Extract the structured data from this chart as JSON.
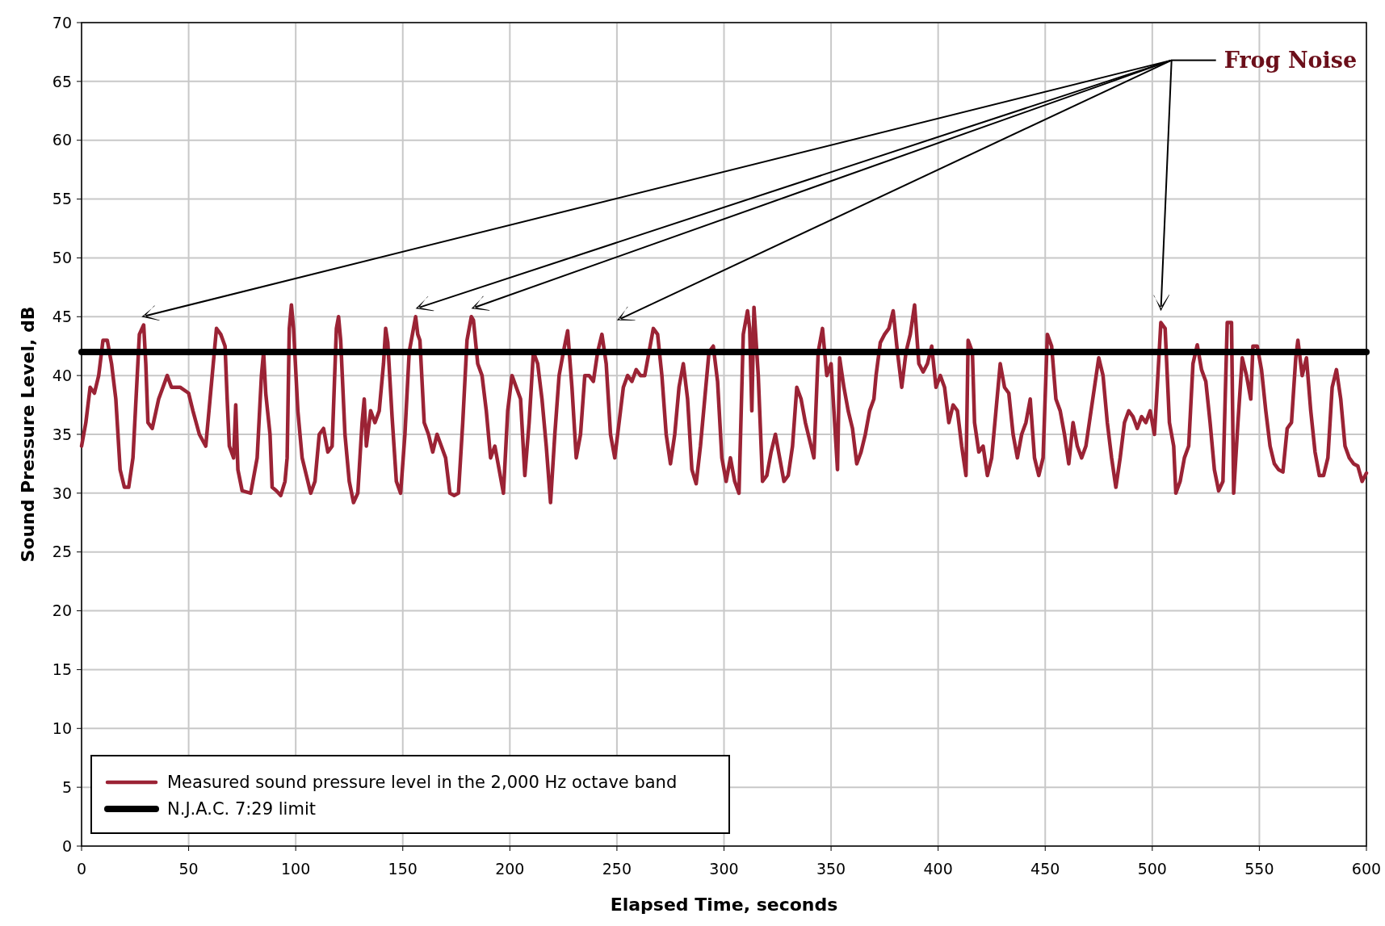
{
  "chart_data": {
    "type": "line",
    "xlabel": "Elapsed Time, seconds",
    "ylabel": "Sound Pressure Level, dB",
    "xlim": [
      0,
      600
    ],
    "xticks": [
      0,
      50,
      100,
      150,
      200,
      250,
      300,
      350,
      400,
      450,
      500,
      550,
      600
    ],
    "ylim": [
      0,
      70
    ],
    "yticks": [
      0,
      5,
      10,
      15,
      20,
      25,
      30,
      35,
      40,
      45,
      50,
      55,
      60,
      65,
      70
    ],
    "grid": true,
    "legend": "bottom left",
    "series": [
      {
        "name": "Measured sound pressure level in the 2,000 Hz octave band",
        "color": "#9b2335",
        "x": [
          0,
          2,
          4,
          6,
          8,
          10,
          12,
          14,
          16,
          18,
          20,
          22,
          24,
          26,
          27,
          29,
          30,
          31,
          33,
          36,
          38,
          40,
          42,
          46,
          50,
          52,
          55,
          58,
          60,
          62,
          63,
          65,
          67,
          68,
          69,
          71,
          72,
          73,
          75,
          79,
          82,
          84,
          85,
          86,
          88,
          89,
          91,
          93,
          95,
          96,
          97,
          98,
          99,
          101,
          103,
          105,
          107,
          109,
          111,
          113,
          115,
          117,
          119,
          120,
          121,
          123,
          125,
          127,
          129,
          131,
          132,
          133,
          135,
          137,
          139,
          141,
          142,
          143,
          145,
          147,
          149,
          151,
          153,
          155,
          156,
          157,
          158,
          160,
          162,
          164,
          166,
          168,
          170,
          172,
          174,
          176,
          178,
          180,
          182,
          183,
          185,
          187,
          189,
          191,
          193,
          195,
          197,
          199,
          201,
          203,
          205,
          207,
          209,
          211,
          213,
          215,
          217,
          219,
          221,
          223,
          225,
          227,
          229,
          231,
          233,
          235,
          237,
          239,
          241,
          243,
          245,
          247,
          249,
          251,
          253,
          255,
          257,
          259,
          261,
          263,
          265,
          267,
          269,
          271,
          273,
          275,
          277,
          279,
          281,
          283,
          285,
          287,
          289,
          291,
          293,
          295,
          297,
          299,
          301,
          303,
          305,
          307,
          309,
          311,
          312,
          313,
          314,
          316,
          318,
          320,
          322,
          324,
          326,
          328,
          330,
          332,
          334,
          336,
          338,
          340,
          342,
          344,
          346,
          348,
          350,
          352,
          353,
          354,
          356,
          358,
          360,
          362,
          364,
          366,
          368,
          370,
          371,
          373,
          375,
          377,
          379,
          381,
          383,
          385,
          387,
          389,
          391,
          393,
          395,
          397,
          399,
          401,
          403,
          405,
          407,
          409,
          411,
          413,
          414,
          416,
          417,
          419,
          421,
          423,
          425,
          427,
          429,
          431,
          433,
          435,
          437,
          439,
          441,
          443,
          445,
          447,
          449,
          451,
          453,
          455,
          457,
          459,
          461,
          463,
          465,
          467,
          469,
          471,
          473,
          475,
          477,
          479,
          481,
          483,
          485,
          487,
          489,
          491,
          493,
          495,
          497,
          499,
          501,
          502,
          504,
          506,
          508,
          510,
          511,
          513,
          515,
          517,
          519,
          521,
          523,
          525,
          527,
          529,
          531,
          533,
          535,
          537,
          538,
          540,
          542,
          544,
          546,
          547,
          549,
          551,
          553,
          555,
          557,
          559,
          561,
          563,
          565,
          567,
          568,
          570,
          572,
          574,
          576,
          578,
          580,
          582,
          584,
          586,
          588,
          590,
          592,
          594,
          596,
          598,
          600
        ],
        "values": [
          34,
          36,
          39,
          38.5,
          40,
          43,
          43,
          41,
          38,
          32,
          30.5,
          30.5,
          33,
          40,
          43.5,
          44.3,
          41,
          36,
          35.5,
          38,
          39,
          40,
          39,
          39,
          38.5,
          37,
          35,
          34,
          38,
          42,
          44,
          43.5,
          42.5,
          38,
          34,
          33,
          37.5,
          32,
          30.2,
          30,
          33,
          40,
          42,
          38.5,
          35,
          30.5,
          30.2,
          29.8,
          31,
          33,
          44,
          46,
          44,
          37,
          33,
          31.5,
          30,
          31,
          35,
          35.5,
          33.5,
          34,
          44,
          45,
          43,
          35,
          31,
          29.2,
          30,
          36,
          38,
          34,
          37,
          36,
          37,
          41,
          44,
          42.8,
          36.5,
          31,
          30,
          35,
          42,
          44,
          45,
          43.5,
          43,
          36,
          35,
          33.5,
          35,
          34,
          33,
          30,
          29.8,
          30,
          36,
          43,
          45,
          44.7,
          41,
          40,
          37,
          33,
          34,
          32,
          30,
          37,
          40,
          39,
          38,
          31.5,
          36,
          42,
          41,
          38,
          34,
          29.2,
          35,
          40,
          42,
          43.8,
          39,
          33,
          35,
          40,
          40,
          39.5,
          42,
          43.5,
          41,
          35,
          33,
          36,
          39,
          40,
          39.5,
          40.5,
          40,
          40,
          42,
          44,
          43.5,
          40,
          35,
          32.5,
          35,
          39,
          41,
          38,
          32,
          30.8,
          34,
          38,
          42,
          42.5,
          39.5,
          33,
          31,
          33,
          31,
          30,
          43.5,
          45.5,
          44,
          37,
          45.8,
          40,
          31,
          31.5,
          33.5,
          35,
          33,
          31,
          31.5,
          34,
          39,
          38,
          36,
          34.5,
          33,
          42,
          44,
          40,
          41,
          35,
          32,
          41.5,
          39,
          37,
          35.5,
          32.5,
          33.5,
          35,
          37,
          38,
          40,
          42.8,
          43.5,
          44,
          45.5,
          42,
          39,
          42,
          43.5,
          46,
          41,
          40.3,
          41,
          42.5,
          39,
          40,
          39,
          36,
          37.5,
          37,
          34,
          31.5,
          43,
          42,
          36,
          33.5,
          34,
          31.5,
          33,
          37,
          41,
          39,
          38.5,
          35,
          33,
          35,
          36,
          38,
          33,
          31.5,
          33,
          43.5,
          42.5,
          38,
          37,
          35,
          32.5,
          36,
          34,
          33,
          34,
          36.5,
          39,
          41.5,
          40,
          36,
          33,
          30.5,
          33,
          36,
          37,
          36.5,
          35.5,
          36.5,
          36,
          37,
          35,
          38,
          44.5,
          44,
          36,
          34,
          30,
          31,
          33,
          34,
          41,
          42.6,
          40.5,
          39.5,
          36,
          32,
          30.2,
          31,
          44.5,
          44.5,
          30,
          36,
          41.5,
          40,
          38,
          42.5,
          42.5,
          40.5,
          37,
          34,
          32.5,
          32,
          31.8,
          35.5,
          36,
          41.5,
          43,
          40,
          41.5,
          37,
          33.5,
          31.5,
          31.5,
          33,
          39,
          40.5,
          38,
          34,
          33,
          32.5,
          32.3,
          31,
          31.7
        ]
      },
      {
        "name": "N.J.A.C. 7:29 limit",
        "color": "#000000",
        "x": [
          0,
          600
        ],
        "values": [
          42,
          42
        ]
      }
    ],
    "annotations": [
      "Frog Noise"
    ]
  }
}
